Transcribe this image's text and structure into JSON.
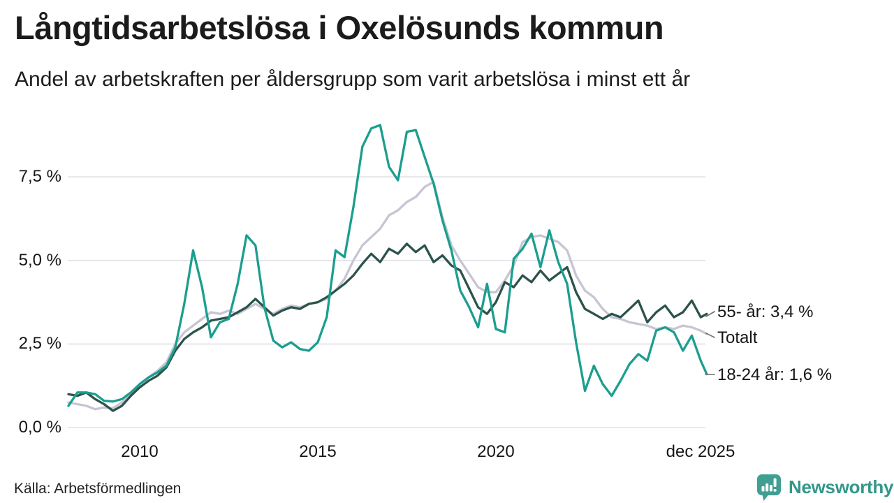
{
  "chart_data": {
    "type": "line",
    "title": "Långtidsarbetslösa i Oxelösunds kommun",
    "subtitle": "Andel av arbetskraften per åldersgrupp som varit arbetslösa i minst ett år",
    "xlabel": "",
    "ylabel": "",
    "grid": true,
    "legend_position": "end-of-line-labels",
    "x_axis": {
      "range": [
        2008,
        2026.3
      ],
      "ticks": [
        {
          "value": 2010,
          "label": "2010"
        },
        {
          "value": 2015,
          "label": "2015"
        },
        {
          "value": 2020,
          "label": "2020"
        },
        {
          "value": 2025.92,
          "label": "dec 2025"
        }
      ]
    },
    "y_axis": {
      "range": [
        0,
        9.3
      ],
      "unit": "%",
      "ticks": [
        {
          "value": 0.0,
          "label": "0,0 %"
        },
        {
          "value": 2.5,
          "label": "2,5 %"
        },
        {
          "value": 5.0,
          "label": "5,0 %"
        },
        {
          "value": 7.5,
          "label": "7,5 %"
        }
      ]
    },
    "x": [
      2008.0,
      2008.25,
      2008.5,
      2008.75,
      2009.0,
      2009.25,
      2009.5,
      2009.75,
      2010.0,
      2010.25,
      2010.5,
      2010.75,
      2011.0,
      2011.25,
      2011.5,
      2011.75,
      2012.0,
      2012.25,
      2012.5,
      2012.75,
      2013.0,
      2013.25,
      2013.5,
      2013.75,
      2014.0,
      2014.25,
      2014.5,
      2014.75,
      2015.0,
      2015.25,
      2015.5,
      2015.75,
      2016.0,
      2016.25,
      2016.5,
      2016.75,
      2017.0,
      2017.25,
      2017.5,
      2017.75,
      2018.0,
      2018.25,
      2018.5,
      2018.75,
      2019.0,
      2019.25,
      2019.5,
      2019.75,
      2020.0,
      2020.25,
      2020.5,
      2020.75,
      2021.0,
      2021.25,
      2021.5,
      2021.75,
      2022.0,
      2022.25,
      2022.5,
      2022.75,
      2023.0,
      2023.25,
      2023.5,
      2023.75,
      2024.0,
      2024.25,
      2024.5,
      2024.75,
      2025.0,
      2025.25,
      2025.5,
      2025.75,
      2025.92
    ],
    "series": [
      {
        "id": "totalt",
        "name": "Totalt",
        "end_label": "Totalt",
        "color": "#c8c5d3",
        "values": [
          0.75,
          0.7,
          0.65,
          0.55,
          0.6,
          0.58,
          0.75,
          1.0,
          1.3,
          1.5,
          1.7,
          1.95,
          2.5,
          2.85,
          3.05,
          3.25,
          3.45,
          3.4,
          3.5,
          3.4,
          3.55,
          3.7,
          3.55,
          3.4,
          3.55,
          3.65,
          3.6,
          3.7,
          3.75,
          3.85,
          4.1,
          4.45,
          5.0,
          5.45,
          5.7,
          5.95,
          6.35,
          6.5,
          6.75,
          6.9,
          7.2,
          7.35,
          6.3,
          5.45,
          5.0,
          4.6,
          4.2,
          4.05,
          4.05,
          4.4,
          4.85,
          5.55,
          5.7,
          5.75,
          5.65,
          5.55,
          5.3,
          4.55,
          4.1,
          3.9,
          3.55,
          3.3,
          3.25,
          3.15,
          3.1,
          3.05,
          2.95,
          3.0,
          2.95,
          3.05,
          3.0,
          2.9,
          2.8
        ]
      },
      {
        "id": "55plus",
        "name": "55- år",
        "end_label": "55- år: 3,4 %",
        "last_value": "3,4 %",
        "color": "#2b534b",
        "values": [
          1.0,
          0.95,
          1.05,
          0.85,
          0.7,
          0.5,
          0.65,
          0.95,
          1.2,
          1.4,
          1.55,
          1.8,
          2.3,
          2.65,
          2.85,
          3.0,
          3.2,
          3.25,
          3.3,
          3.45,
          3.6,
          3.85,
          3.6,
          3.35,
          3.5,
          3.6,
          3.55,
          3.7,
          3.75,
          3.9,
          4.1,
          4.3,
          4.55,
          4.9,
          5.2,
          4.95,
          5.35,
          5.2,
          5.5,
          5.25,
          5.45,
          4.95,
          5.15,
          4.85,
          4.7,
          4.15,
          3.6,
          3.4,
          3.75,
          4.35,
          4.2,
          4.55,
          4.35,
          4.7,
          4.4,
          4.6,
          4.8,
          4.05,
          3.55,
          3.4,
          3.25,
          3.4,
          3.3,
          3.55,
          3.8,
          3.15,
          3.45,
          3.65,
          3.3,
          3.45,
          3.8,
          3.3,
          3.4
        ]
      },
      {
        "id": "18-24",
        "name": "18-24 år",
        "end_label": "18-24 år: 1,6 %",
        "last_value": "1,6 %",
        "color": "#1b9e8e",
        "values": [
          0.65,
          1.05,
          1.05,
          1.0,
          0.8,
          0.78,
          0.85,
          1.05,
          1.3,
          1.5,
          1.65,
          1.85,
          2.4,
          3.7,
          5.3,
          4.2,
          2.7,
          3.15,
          3.25,
          4.3,
          5.75,
          5.45,
          3.6,
          2.6,
          2.4,
          2.55,
          2.35,
          2.3,
          2.55,
          3.3,
          5.3,
          5.1,
          6.6,
          8.4,
          8.95,
          9.05,
          7.8,
          7.4,
          8.85,
          8.9,
          8.1,
          7.3,
          6.2,
          5.3,
          4.1,
          3.6,
          3.0,
          4.3,
          2.95,
          2.85,
          5.05,
          5.35,
          5.8,
          4.8,
          5.9,
          4.95,
          4.3,
          2.55,
          1.1,
          1.85,
          1.3,
          0.95,
          1.4,
          1.9,
          2.2,
          2.0,
          2.9,
          3.0,
          2.85,
          2.3,
          2.75,
          2.0,
          1.6
        ]
      }
    ]
  },
  "footer": {
    "source": "Källa: Arbetsförmedlingen",
    "brand": "Newsworthy"
  }
}
